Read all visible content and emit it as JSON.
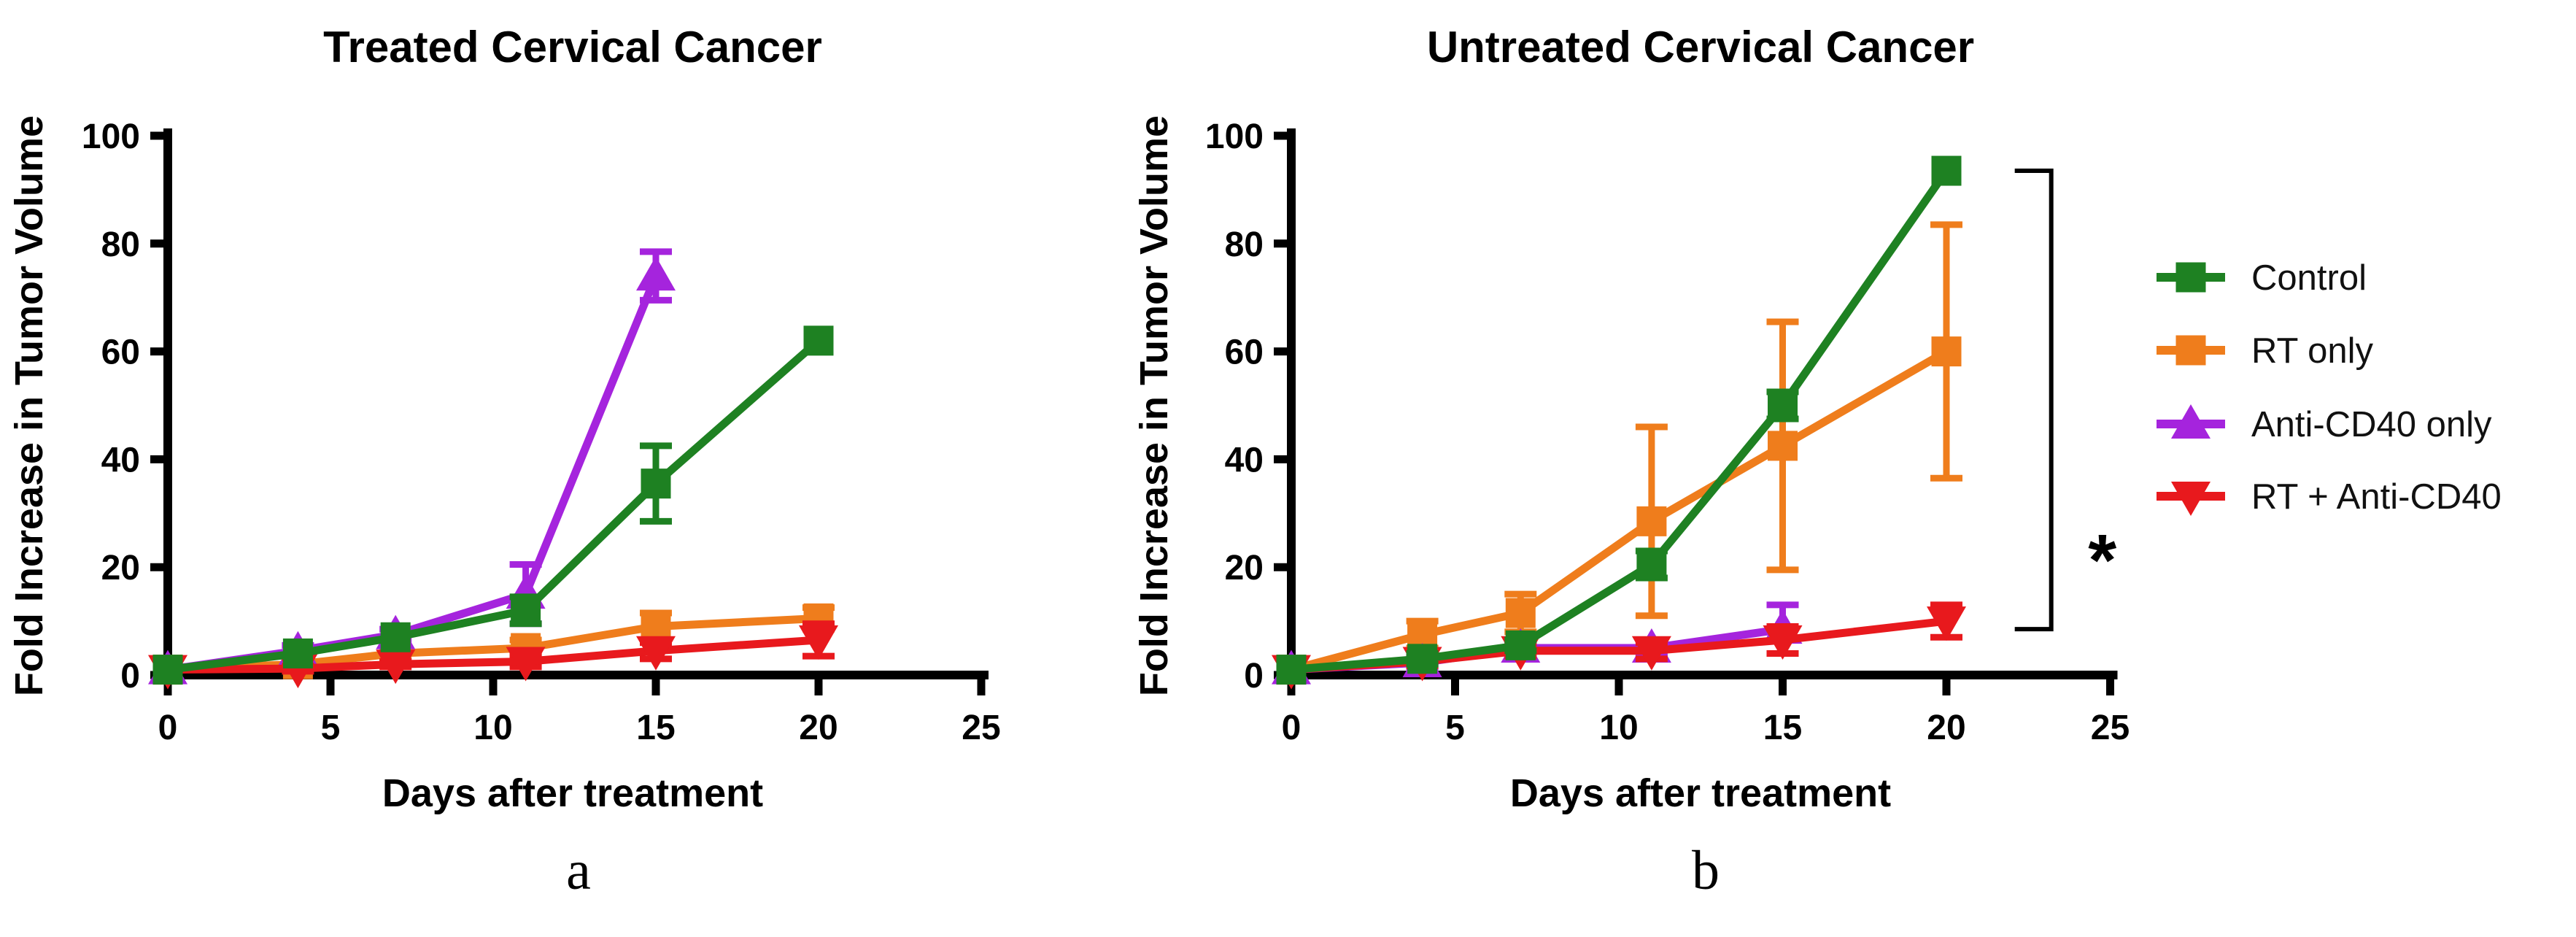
{
  "figure": {
    "panel_letters": [
      "a",
      "b"
    ]
  },
  "legend": {
    "items": [
      {
        "label": "Control",
        "color": "#1e8122",
        "marker": "square"
      },
      {
        "label": "RT only",
        "color": "#ef7d1c",
        "marker": "square"
      },
      {
        "label": "Anti-CD40 only",
        "color": "#a524dd",
        "marker": "triangle-up"
      },
      {
        "label": "RT + Anti-CD40",
        "color": "#e8191d",
        "marker": "triangle-down"
      }
    ]
  },
  "chart_data": [
    {
      "type": "line",
      "title": "Treated Cervical Cancer",
      "xlabel": "Days after treatment",
      "ylabel": "Fold Increase in Tumor Volume",
      "panel_letter": "a",
      "xlim": [
        0,
        25
      ],
      "ylim": [
        0,
        100
      ],
      "x_ticks": [
        0,
        5,
        10,
        15,
        20,
        25
      ],
      "y_ticks": [
        0,
        20,
        40,
        60,
        80,
        100
      ],
      "legend_visible": false,
      "x": [
        0,
        4,
        7,
        11,
        15,
        20
      ],
      "series": [
        {
          "name": "Control",
          "color": "#1e8122",
          "marker": "square",
          "values": [
            1,
            4,
            7,
            12,
            35.5,
            62
          ],
          "errors": [
            0,
            0,
            0,
            2.5,
            7,
            0
          ]
        },
        {
          "name": "RT only",
          "color": "#ef7d1c",
          "marker": "square",
          "values": [
            1,
            2,
            4,
            5,
            9,
            10.5
          ],
          "errors": [
            0,
            0.8,
            1,
            1.5,
            2.5,
            2
          ]
        },
        {
          "name": "Anti-CD40 only",
          "color": "#a524dd",
          "marker": "triangle-up",
          "values": [
            1,
            4.5,
            7.5,
            15,
            74
          ],
          "errors": [
            0,
            1,
            1,
            5.5,
            4.5
          ]
        },
        {
          "name": "RT + Anti-CD40",
          "color": "#e8191d",
          "marker": "triangle-down",
          "values": [
            1,
            1.2,
            2,
            2.5,
            4.5,
            6.5
          ],
          "errors": [
            0,
            0.5,
            0.5,
            1,
            1.5,
            3
          ]
        }
      ]
    },
    {
      "type": "line",
      "title": "Untreated Cervical Cancer",
      "xlabel": "Days after treatment",
      "ylabel": "Fold Increase in Tumor Volume",
      "panel_letter": "b",
      "xlim": [
        0,
        25
      ],
      "ylim": [
        0,
        100
      ],
      "x_ticks": [
        0,
        5,
        10,
        15,
        20,
        25
      ],
      "y_ticks": [
        0,
        20,
        40,
        60,
        80,
        100
      ],
      "legend_visible": true,
      "x": [
        0,
        4,
        7,
        11,
        15,
        20
      ],
      "series": [
        {
          "name": "Control",
          "color": "#1e8122",
          "marker": "square",
          "values": [
            1,
            3,
            5.5,
            20.5,
            50,
            93.5
          ],
          "errors": [
            0,
            1,
            1,
            2.5,
            2.5,
            0
          ]
        },
        {
          "name": "RT only",
          "color": "#ef7d1c",
          "marker": "square",
          "values": [
            1,
            7.5,
            11.5,
            28.5,
            42.5,
            60
          ],
          "errors": [
            0,
            2.5,
            3.5,
            17.5,
            23,
            23.5
          ]
        },
        {
          "name": "Anti-CD40 only",
          "color": "#a524dd",
          "marker": "triangle-up",
          "values": [
            1,
            2.3,
            5,
            5,
            8.5
          ],
          "errors": [
            0,
            0.8,
            1,
            1.5,
            4.5
          ]
        },
        {
          "name": "RT + Anti-CD40",
          "color": "#e8191d",
          "marker": "triangle-down",
          "values": [
            1,
            2.5,
            4.5,
            4.5,
            6.5,
            10
          ],
          "errors": [
            0,
            0.8,
            1,
            1.5,
            2.5,
            3
          ]
        }
      ],
      "significance": {
        "symbol": "*",
        "day": 23.2,
        "from_value": 93.5,
        "to_value": 8.5
      }
    }
  ]
}
